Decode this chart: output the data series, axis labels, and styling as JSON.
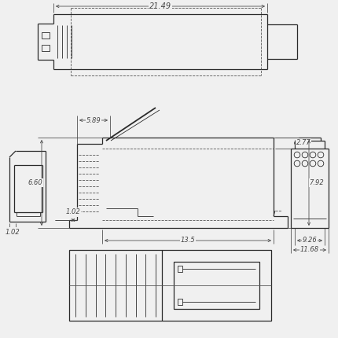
{
  "bg_color": "#f0f0f0",
  "line_color": "#2a2a2a",
  "dim_color": "#444444",
  "dash_color": "#555555",
  "lw": 0.9,
  "tlw": 0.6,
  "dlw": 0.55,
  "annotations": {
    "w2149": "21.49",
    "d102a": "1.02",
    "d589": "5.89",
    "d277": "2.77",
    "d660": "6.60",
    "d792": "7.92",
    "d135": "13.5",
    "d102b": "1.02",
    "d926": "9.26",
    "d1168": "11.68"
  }
}
